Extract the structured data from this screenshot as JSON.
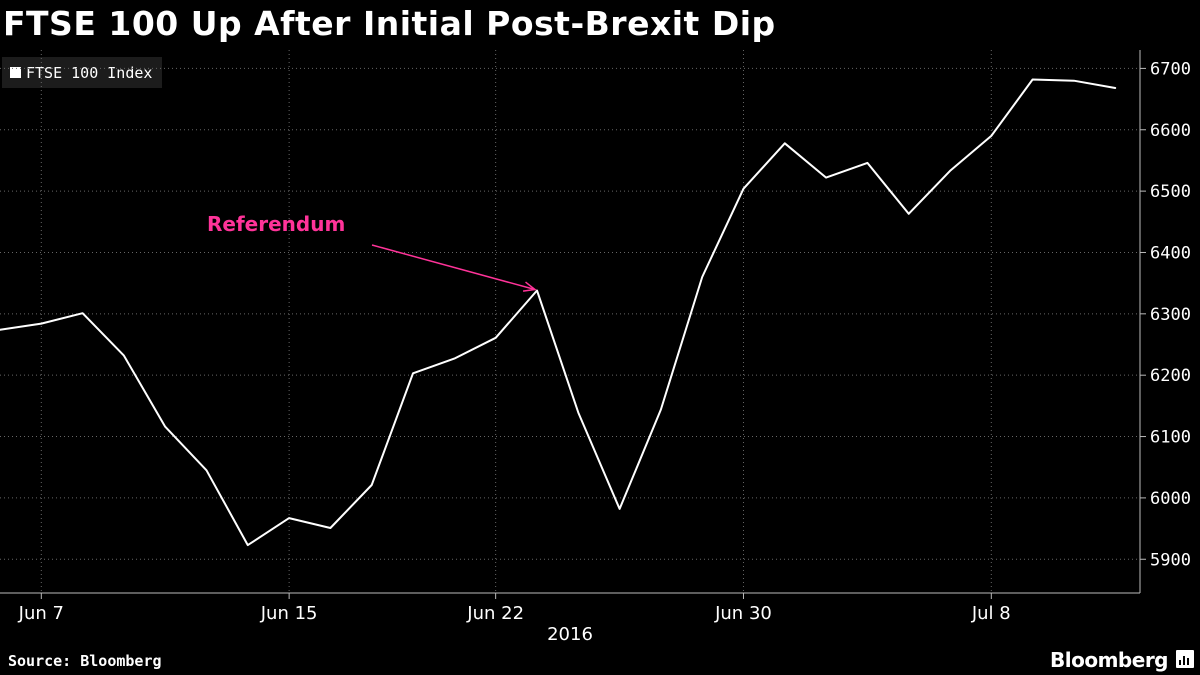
{
  "header": {
    "title": "FTSE 100 Up After Initial Post-Brexit Dip"
  },
  "legend": {
    "label": "FTSE 100 Index"
  },
  "footer": {
    "source": "Source: Bloomberg",
    "brand": "Bloomberg"
  },
  "colors": {
    "background": "#000000",
    "line": "#ffffff",
    "annotation": "#ff3399",
    "grid": "#666666",
    "axis": "#bbbbbb"
  },
  "chart_data": {
    "type": "line",
    "title": "FTSE 100 Up After Initial Post-Brexit Dip",
    "xlabel": "2016",
    "ylabel": "",
    "ylim": [
      5845,
      6730
    ],
    "y_ticks": [
      5900,
      6000,
      6100,
      6200,
      6300,
      6400,
      6500,
      6600,
      6700
    ],
    "y_tick_labels": [
      "5900",
      "6000",
      "6100",
      "6200",
      "6300",
      "6400",
      "6500",
      "6600",
      "6700"
    ],
    "x_ticks": [
      "Jun 7",
      "Jun 15",
      "Jun 22",
      "Jun 30",
      "Jul 8"
    ],
    "x_tick_positions": [
      1,
      7,
      12,
      18,
      24
    ],
    "x_year_label": "2016",
    "xlim": [
      0,
      27.6
    ],
    "grid": true,
    "legend_position": "top-left",
    "series": [
      {
        "name": "FTSE 100 Index",
        "x": [
          0,
          1,
          2,
          3,
          4,
          5,
          6,
          7,
          8,
          9,
          10,
          11,
          12,
          13,
          14,
          15,
          16,
          17,
          18,
          19,
          20,
          21,
          22,
          23,
          24,
          25,
          26,
          27
        ],
        "values": [
          6274,
          6284,
          6301,
          6232,
          6116,
          6045,
          5923,
          5967,
          5951,
          6021,
          6203,
          6227,
          6261,
          6338,
          6139,
          5982,
          6144,
          6360,
          6504,
          6578,
          6522,
          6546,
          6463,
          6533,
          6590,
          6682,
          6680,
          6668
        ]
      }
    ],
    "annotations": [
      {
        "text": "Referendum",
        "target_x": 13,
        "target_value": 6338
      }
    ]
  }
}
